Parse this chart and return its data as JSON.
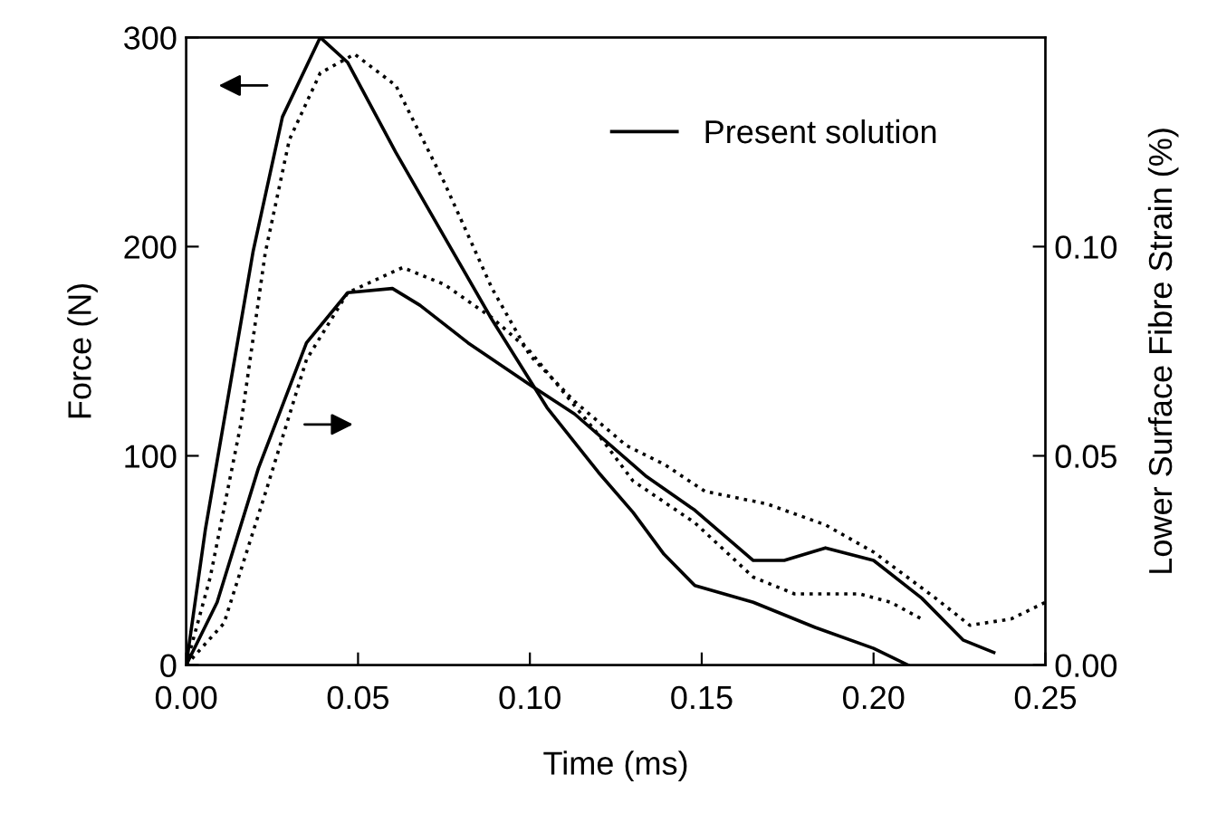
{
  "chart_data": {
    "type": "line",
    "xlabel": "Time (ms)",
    "ylabel": "Force (N)",
    "y2label": "Lower Surface Fibre Strain (%)",
    "xlim": [
      0,
      0.25
    ],
    "xticks": [
      {
        "value": 0,
        "label": "0.00"
      },
      {
        "value": 0.05,
        "label": "0.05"
      },
      {
        "value": 0.1,
        "label": "0.10"
      },
      {
        "value": 0.15,
        "label": "0.15"
      },
      {
        "value": 0.2,
        "label": "0.20"
      },
      {
        "value": 0.25,
        "label": "0.25"
      }
    ],
    "ylim": [
      0,
      300
    ],
    "yticks": [
      0,
      100,
      200,
      300
    ],
    "y2lim": [
      0,
      0.15
    ],
    "y2ticks": [
      {
        "value": 0,
        "label": "0.00"
      },
      {
        "value": 0.05,
        "label": "0.05"
      },
      {
        "value": 0.1,
        "label": "0.10"
      }
    ],
    "grid": false,
    "legend": "top right",
    "marker": "none",
    "series": [
      {
        "color": "#000000",
        "line_style": "dotted",
        "x": [
          0,
          0.007,
          0.016,
          0.023,
          0.03,
          0.039,
          0.049,
          0.061,
          0.075,
          0.089,
          0.1,
          0.113,
          0.128,
          0.139,
          0.151,
          0.169,
          0.186,
          0.2,
          0.218,
          0.228,
          0.24,
          0.25
        ],
        "values": [
          0,
          42,
          116,
          197,
          251,
          283,
          292,
          277,
          231,
          180,
          148,
          126,
          105,
          96,
          83,
          77,
          67,
          54,
          32,
          19,
          22,
          30
        ]
      },
      {
        "name": "Present solution",
        "color": "#000000",
        "line_style": "solid",
        "x": [
          0,
          0.0056,
          0.0125,
          0.0195,
          0.028,
          0.039,
          0.047,
          0.061,
          0.075,
          0.089,
          0.105,
          0.12,
          0.13,
          0.139,
          0.148,
          0.165,
          0.183,
          0.2,
          0.21
        ],
        "values": [
          0,
          65,
          131,
          198,
          262,
          300,
          288,
          245,
          205,
          165,
          123,
          92,
          73,
          53,
          38,
          30,
          18,
          8,
          0
        ]
      },
      {
        "axis": "y2",
        "color": "#000000",
        "line_style": "dotted",
        "x": [
          0,
          0.011,
          0.023,
          0.035,
          0.047,
          0.063,
          0.075,
          0.089,
          0.1,
          0.11,
          0.12,
          0.13,
          0.148,
          0.165,
          0.177,
          0.196,
          0.205,
          0.214
        ],
        "values": [
          0,
          0.01,
          0.041,
          0.073,
          0.089,
          0.095,
          0.091,
          0.083,
          0.075,
          0.065,
          0.055,
          0.044,
          0.034,
          0.021,
          0.017,
          0.017,
          0.015,
          0.011
        ]
      },
      {
        "axis": "y2",
        "color": "#000000",
        "line_style": "solid",
        "x": [
          0,
          0.009,
          0.021,
          0.035,
          0.047,
          0.06,
          0.068,
          0.082,
          0.1,
          0.113,
          0.134,
          0.148,
          0.165,
          0.174,
          0.186,
          0.2,
          0.214,
          0.226,
          0.235
        ],
        "values": [
          0,
          0.015,
          0.047,
          0.077,
          0.089,
          0.09,
          0.086,
          0.077,
          0.067,
          0.06,
          0.045,
          0.037,
          0.025,
          0.025,
          0.028,
          0.025,
          0.016,
          0.006,
          0.003
        ]
      }
    ]
  }
}
